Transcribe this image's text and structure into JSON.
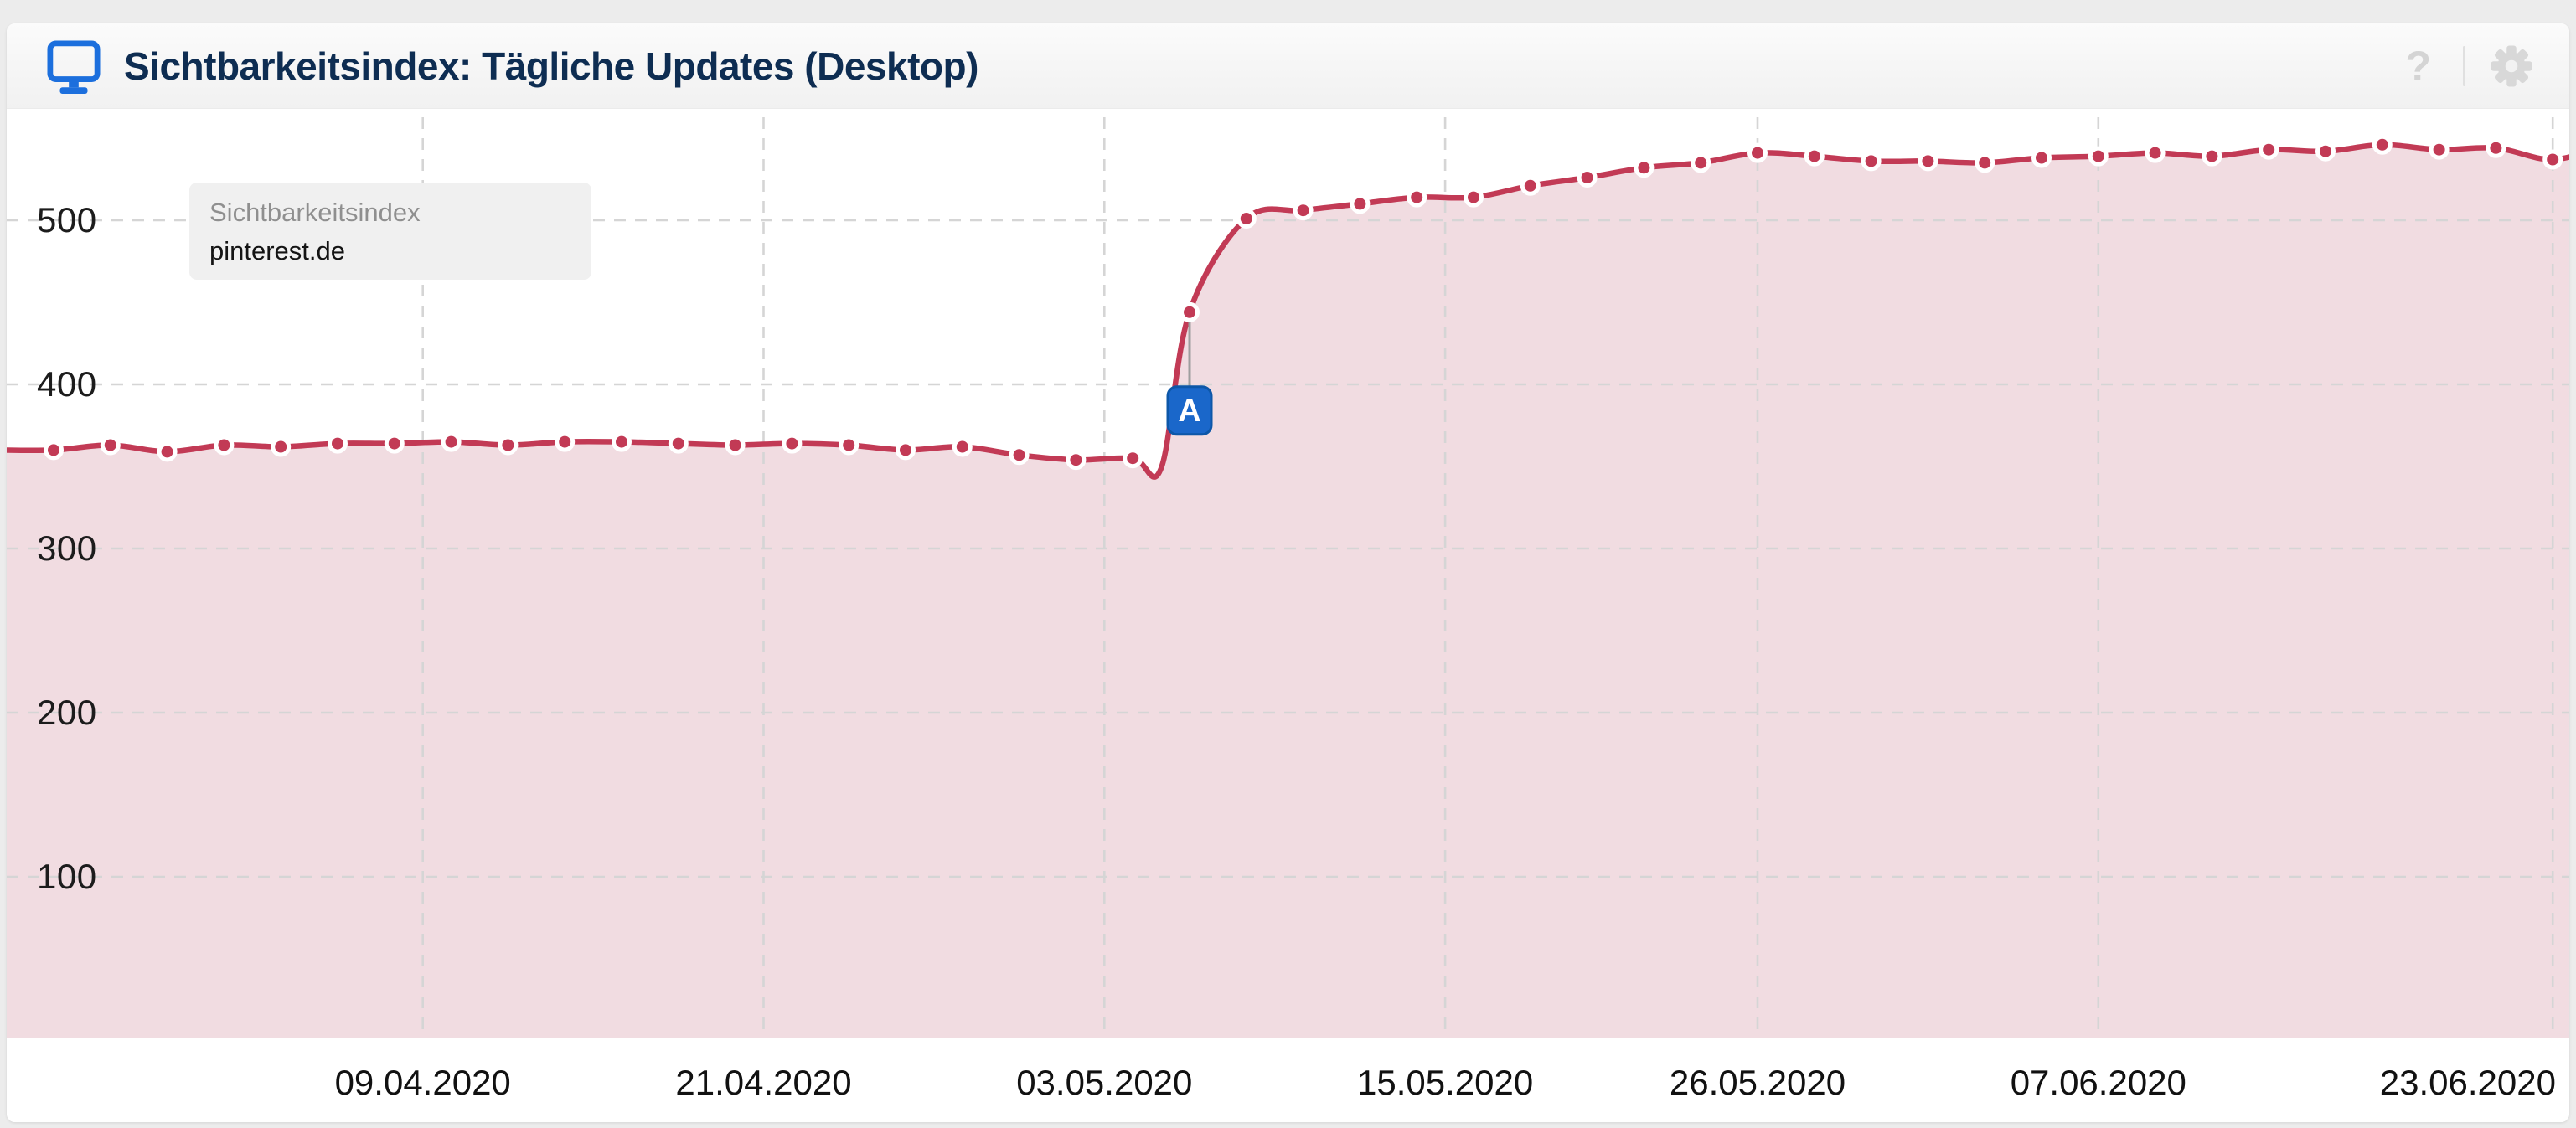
{
  "header": {
    "title": "Sichtbarkeitsindex: Tägliche Updates (Desktop)",
    "help_label": "?",
    "icons": {
      "left": "desktop-monitor-icon",
      "right": [
        "help-icon",
        "gear-icon"
      ]
    }
  },
  "series_tooltip": {
    "metric": "Sichtbarkeitsindex",
    "domain": "pinterest.de"
  },
  "colors": {
    "line": "#c23a55",
    "area_fill": "#f1dce1",
    "dot_fill": "#c23a55",
    "dot_ring": "#ffffff",
    "grid": "#d5d5d5",
    "axis_text": "#161616",
    "title_text": "#0e2d52",
    "brand_blue": "#1c6fdd",
    "marker_fill": "#1a67ca",
    "marker_border": "#0d57a8",
    "marker_text": "#ffffff",
    "connector": "#9e9e9e",
    "muted_icon": "#d4d4d4",
    "tooltip_bg": "#f0f0f0"
  },
  "chart_data": {
    "type": "area",
    "title": "Sichtbarkeitsindex: Tägliche Updates (Desktop)",
    "series_name": "Sichtbarkeitsindex",
    "domain": "pinterest.de",
    "grid": "dashed",
    "legend_position": "top-left-inside",
    "ylim": [
      0,
      568
    ],
    "y_ticks": [
      100,
      200,
      300,
      400,
      500
    ],
    "x_ticks": [
      {
        "label": "09.04.2020"
      },
      {
        "label": "21.04.2020"
      },
      {
        "label": "03.05.2020"
      },
      {
        "label": "15.05.2020"
      },
      {
        "label": "26.05.2020"
      },
      {
        "label": "07.06.2020"
      },
      {
        "label": "23.06.2020",
        "align": "right"
      }
    ],
    "annotation": {
      "label": "A",
      "date": "06.05.2020",
      "value": 444
    },
    "points": [
      {
        "date": "25.03.2020",
        "value": 360,
        "dot": false
      },
      {
        "date": "27.03.2020",
        "value": 360
      },
      {
        "date": "29.03.2020",
        "value": 363
      },
      {
        "date": "31.03.2020",
        "value": 359
      },
      {
        "date": "02.04.2020",
        "value": 363
      },
      {
        "date": "04.04.2020",
        "value": 362
      },
      {
        "date": "06.04.2020",
        "value": 364
      },
      {
        "date": "08.04.2020",
        "value": 364
      },
      {
        "date": "10.04.2020",
        "value": 365
      },
      {
        "date": "12.04.2020",
        "value": 363
      },
      {
        "date": "14.04.2020",
        "value": 365
      },
      {
        "date": "16.04.2020",
        "value": 365
      },
      {
        "date": "18.04.2020",
        "value": 364
      },
      {
        "date": "20.04.2020",
        "value": 363
      },
      {
        "date": "22.04.2020",
        "value": 364
      },
      {
        "date": "24.04.2020",
        "value": 363
      },
      {
        "date": "26.04.2020",
        "value": 360
      },
      {
        "date": "28.04.2020",
        "value": 362
      },
      {
        "date": "30.04.2020",
        "value": 357
      },
      {
        "date": "02.05.2020",
        "value": 354
      },
      {
        "date": "04.05.2020",
        "value": 355
      },
      {
        "date": "05.05.2020",
        "value": 349,
        "dot": false
      },
      {
        "date": "06.05.2020",
        "value": 444
      },
      {
        "date": "08.05.2020",
        "value": 501
      },
      {
        "date": "10.05.2020",
        "value": 506
      },
      {
        "date": "12.05.2020",
        "value": 510
      },
      {
        "date": "14.05.2020",
        "value": 514
      },
      {
        "date": "16.05.2020",
        "value": 514
      },
      {
        "date": "18.05.2020",
        "value": 521
      },
      {
        "date": "20.05.2020",
        "value": 526
      },
      {
        "date": "22.05.2020",
        "value": 532
      },
      {
        "date": "24.05.2020",
        "value": 535
      },
      {
        "date": "26.05.2020",
        "value": 541
      },
      {
        "date": "28.05.2020",
        "value": 539
      },
      {
        "date": "30.05.2020",
        "value": 536
      },
      {
        "date": "01.06.2020",
        "value": 536
      },
      {
        "date": "03.06.2020",
        "value": 535
      },
      {
        "date": "05.06.2020",
        "value": 538
      },
      {
        "date": "07.06.2020",
        "value": 539
      },
      {
        "date": "09.06.2020",
        "value": 541
      },
      {
        "date": "11.06.2020",
        "value": 539
      },
      {
        "date": "13.06.2020",
        "value": 543
      },
      {
        "date": "15.06.2020",
        "value": 542
      },
      {
        "date": "17.06.2020",
        "value": 546
      },
      {
        "date": "19.06.2020",
        "value": 543
      },
      {
        "date": "21.06.2020",
        "value": 544
      },
      {
        "date": "23.06.2020",
        "value": 537
      },
      {
        "date": "25.06.2020",
        "value": 546,
        "dot": false
      }
    ]
  }
}
